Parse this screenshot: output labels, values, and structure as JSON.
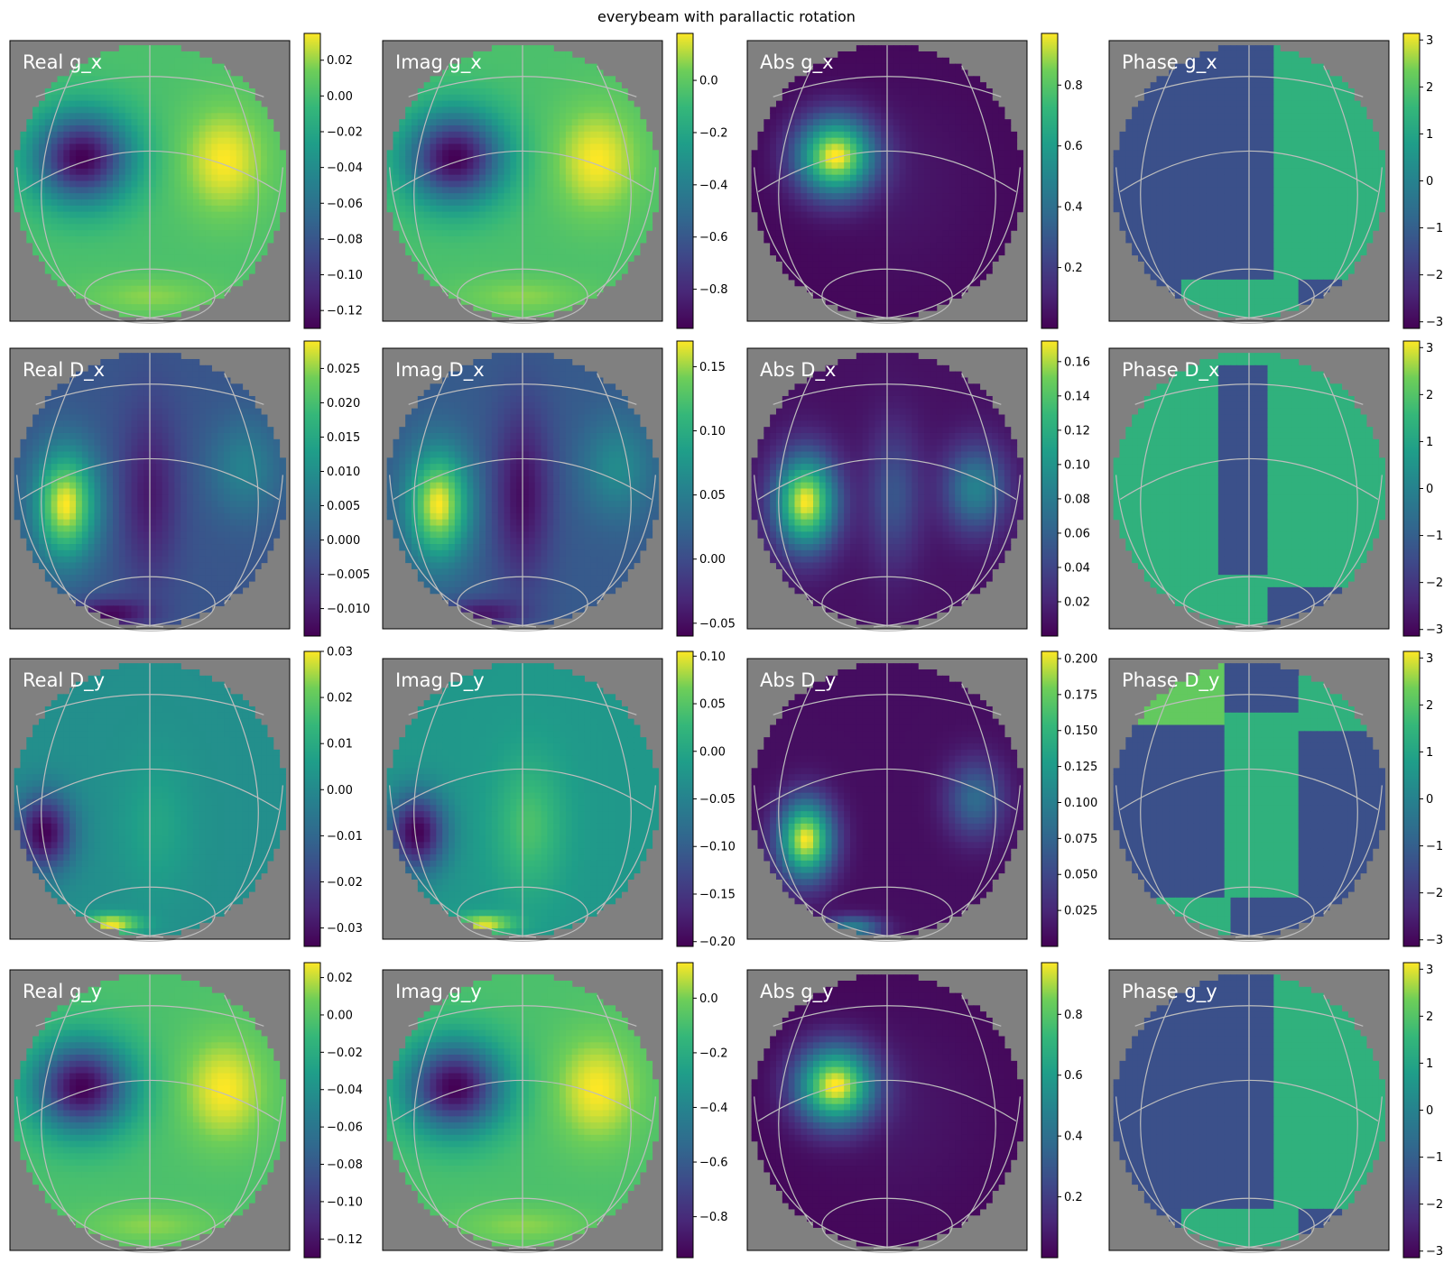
{
  "figure": {
    "title": "everybeam with parallactic rotation",
    "background": "#ffffff",
    "axes_background": "#808080",
    "grid_color": "#bdbdbd",
    "colormap": "viridis",
    "rows": [
      "g_x",
      "D_x",
      "D_y",
      "g_y"
    ],
    "columns": [
      "Real",
      "Imag",
      "Abs",
      "Phase"
    ]
  },
  "chart_data": [
    {
      "type": "heatmap",
      "title": "Real g_x",
      "pattern": "gain",
      "part": "real",
      "clim": [
        -0.13,
        0.035
      ],
      "colorbar_ticks": [
        "0.02",
        "0.00",
        "−0.02",
        "−0.04",
        "−0.06",
        "−0.08",
        "−0.10",
        "−0.12"
      ],
      "colorbar_values": [
        0.02,
        0.0,
        -0.02,
        -0.04,
        -0.06,
        -0.08,
        -0.1,
        -0.12
      ]
    },
    {
      "type": "heatmap",
      "title": "Imag g_x",
      "pattern": "gain",
      "part": "imag",
      "clim": [
        -0.95,
        0.18
      ],
      "colorbar_ticks": [
        "0.0",
        "−0.2",
        "−0.4",
        "−0.6",
        "−0.8"
      ],
      "colorbar_values": [
        0.0,
        -0.2,
        -0.4,
        -0.6,
        -0.8
      ]
    },
    {
      "type": "heatmap",
      "title": "Abs g_x",
      "pattern": "gain",
      "part": "abs",
      "clim": [
        0.0,
        0.97
      ],
      "colorbar_ticks": [
        "0.8",
        "0.6",
        "0.4",
        "0.2"
      ],
      "colorbar_values": [
        0.8,
        0.6,
        0.4,
        0.2
      ]
    },
    {
      "type": "heatmap",
      "title": "Phase g_x",
      "pattern": "gain",
      "part": "phase",
      "clim": [
        -3.14,
        3.14
      ],
      "colorbar_ticks": [
        "3",
        "2",
        "1",
        "0",
        "−1",
        "−2",
        "−3"
      ],
      "colorbar_values": [
        3,
        2,
        1,
        0,
        -1,
        -2,
        -3
      ]
    },
    {
      "type": "heatmap",
      "title": "Real D_x",
      "pattern": "leak_x",
      "part": "real",
      "clim": [
        -0.014,
        0.029
      ],
      "colorbar_ticks": [
        "0.025",
        "0.020",
        "0.015",
        "0.010",
        "0.005",
        "0.000",
        "−0.005",
        "−0.010"
      ],
      "colorbar_values": [
        0.025,
        0.02,
        0.015,
        0.01,
        0.005,
        0.0,
        -0.005,
        -0.01
      ]
    },
    {
      "type": "heatmap",
      "title": "Imag D_x",
      "pattern": "leak_x",
      "part": "imag",
      "clim": [
        -0.06,
        0.17
      ],
      "colorbar_ticks": [
        "0.15",
        "0.10",
        "0.05",
        "0.00",
        "−0.05"
      ],
      "colorbar_values": [
        0.15,
        0.1,
        0.05,
        0.0,
        -0.05
      ]
    },
    {
      "type": "heatmap",
      "title": "Abs D_x",
      "pattern": "leak_x",
      "part": "abs",
      "clim": [
        0.0,
        0.172
      ],
      "colorbar_ticks": [
        "0.16",
        "0.14",
        "0.12",
        "0.10",
        "0.08",
        "0.06",
        "0.04",
        "0.02"
      ],
      "colorbar_values": [
        0.16,
        0.14,
        0.12,
        0.1,
        0.08,
        0.06,
        0.04,
        0.02
      ]
    },
    {
      "type": "heatmap",
      "title": "Phase D_x",
      "pattern": "leak_x",
      "part": "phase",
      "clim": [
        -3.14,
        3.14
      ],
      "colorbar_ticks": [
        "3",
        "2",
        "1",
        "0",
        "−1",
        "−2",
        "−3"
      ],
      "colorbar_values": [
        3,
        2,
        1,
        0,
        -1,
        -2,
        -3
      ]
    },
    {
      "type": "heatmap",
      "title": "Real D_y",
      "pattern": "leak_y",
      "part": "real",
      "clim": [
        -0.034,
        0.03
      ],
      "colorbar_ticks": [
        "0.03",
        "0.02",
        "0.01",
        "0.00",
        "−0.01",
        "−0.02",
        "−0.03"
      ],
      "colorbar_values": [
        0.03,
        0.02,
        0.01,
        0.0,
        -0.01,
        -0.02,
        -0.03
      ]
    },
    {
      "type": "heatmap",
      "title": "Imag D_y",
      "pattern": "leak_y",
      "part": "imag",
      "clim": [
        -0.205,
        0.105
      ],
      "colorbar_ticks": [
        "0.10",
        "0.05",
        "0.00",
        "−0.05",
        "−0.10",
        "−0.15",
        "−0.20"
      ],
      "colorbar_values": [
        0.1,
        0.05,
        0.0,
        -0.05,
        -0.1,
        -0.15,
        -0.2
      ]
    },
    {
      "type": "heatmap",
      "title": "Abs D_y",
      "pattern": "leak_y",
      "part": "abs",
      "clim": [
        0.0,
        0.205
      ],
      "colorbar_ticks": [
        "0.200",
        "0.175",
        "0.150",
        "0.125",
        "0.100",
        "0.075",
        "0.050",
        "0.025"
      ],
      "colorbar_values": [
        0.2,
        0.175,
        0.15,
        0.125,
        0.1,
        0.075,
        0.05,
        0.025
      ]
    },
    {
      "type": "heatmap",
      "title": "Phase D_y",
      "pattern": "leak_y",
      "part": "phase",
      "clim": [
        -3.14,
        3.14
      ],
      "colorbar_ticks": [
        "3",
        "2",
        "1",
        "0",
        "−1",
        "−2",
        "−3"
      ],
      "colorbar_values": [
        3,
        2,
        1,
        0,
        -1,
        -2,
        -3
      ]
    },
    {
      "type": "heatmap",
      "title": "Real g_y",
      "pattern": "gain",
      "part": "real",
      "clim": [
        -0.13,
        0.028
      ],
      "colorbar_ticks": [
        "0.02",
        "0.00",
        "−0.02",
        "−0.04",
        "−0.06",
        "−0.08",
        "−0.10",
        "−0.12"
      ],
      "colorbar_values": [
        0.02,
        0.0,
        -0.02,
        -0.04,
        -0.06,
        -0.08,
        -0.1,
        -0.12
      ]
    },
    {
      "type": "heatmap",
      "title": "Imag g_y",
      "pattern": "gain",
      "part": "imag",
      "clim": [
        -0.95,
        0.13
      ],
      "colorbar_ticks": [
        "0.0",
        "−0.2",
        "−0.4",
        "−0.6",
        "−0.8"
      ],
      "colorbar_values": [
        0.0,
        -0.2,
        -0.4,
        -0.6,
        -0.8
      ]
    },
    {
      "type": "heatmap",
      "title": "Abs g_y",
      "pattern": "gain",
      "part": "abs",
      "clim": [
        0.0,
        0.97
      ],
      "colorbar_ticks": [
        "0.8",
        "0.6",
        "0.4",
        "0.2"
      ],
      "colorbar_values": [
        0.8,
        0.6,
        0.4,
        0.2
      ]
    },
    {
      "type": "heatmap",
      "title": "Phase g_y",
      "pattern": "gain",
      "part": "phase",
      "clim": [
        -3.14,
        3.14
      ],
      "colorbar_ticks": [
        "3",
        "2",
        "1",
        "0",
        "−1",
        "−2",
        "−3"
      ],
      "colorbar_values": [
        3,
        2,
        1,
        0,
        -1,
        -2,
        -3
      ]
    }
  ]
}
